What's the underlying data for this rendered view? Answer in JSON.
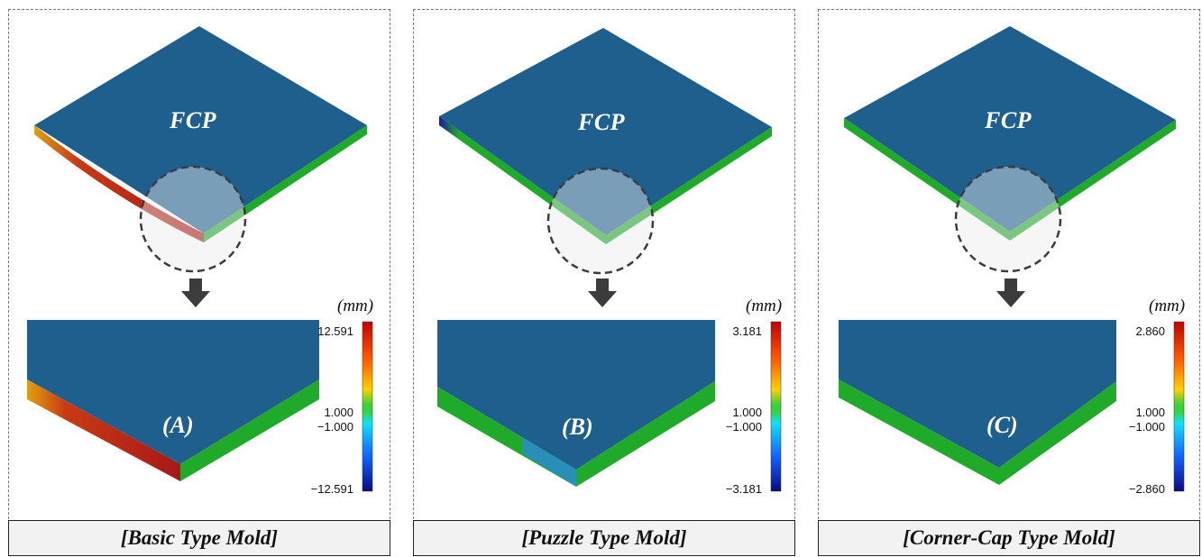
{
  "panels": [
    {
      "id": "A",
      "top_label": "FCP",
      "tag": "(A)",
      "unit": "(mm)",
      "scale": {
        "max": "12.591",
        "upper": "1.000",
        "lower": "−1.000",
        "min": "−12.591"
      },
      "caption": "[Basic Type Mold]"
    },
    {
      "id": "B",
      "top_label": "FCP",
      "tag": "(B)",
      "unit": "(mm)",
      "scale": {
        "max": "3.181",
        "upper": "1.000",
        "lower": "−1.000",
        "min": "−3.181"
      },
      "caption": "[Puzzle Type Mold]"
    },
    {
      "id": "C",
      "top_label": "FCP",
      "tag": "(C)",
      "unit": "(mm)",
      "scale": {
        "max": "2.860",
        "upper": "1.000",
        "lower": "−1.000",
        "min": "−2.860"
      },
      "caption": "[Corner-Cap Type Mold]"
    }
  ],
  "colors": {
    "surface": "#1f5f8e",
    "deviation_in_tolerance": "#1faa2a",
    "deviation_high": "#b01818",
    "deviation_low": "#10108c",
    "callout": "#3c3c3c"
  }
}
